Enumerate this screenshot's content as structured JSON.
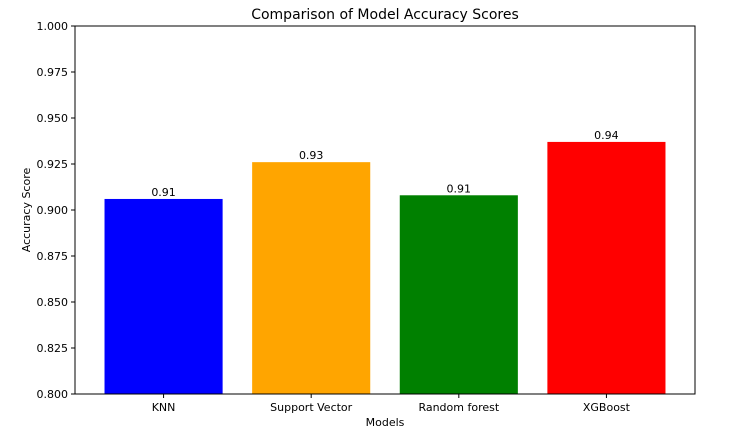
{
  "chart_data": {
    "type": "bar",
    "title": "Comparison of Model Accuracy Scores",
    "xlabel": "Models",
    "ylabel": "Accuracy Score",
    "categories": [
      "KNN",
      "Support Vector",
      "Random forest",
      "XGBoost"
    ],
    "values": [
      0.906,
      0.926,
      0.908,
      0.937
    ],
    "data_labels": [
      "0.91",
      "0.93",
      "0.91",
      "0.94"
    ],
    "colors": [
      "#0000ff",
      "#ffa500",
      "#008000",
      "#ff0000"
    ],
    "ylim": [
      0.8,
      1.0
    ],
    "yticks": [
      0.8,
      0.825,
      0.85,
      0.875,
      0.9,
      0.925,
      0.95,
      0.975,
      1.0
    ],
    "ytick_labels": [
      "0.800",
      "0.825",
      "0.850",
      "0.875",
      "0.900",
      "0.925",
      "0.950",
      "0.975",
      "1.000"
    ],
    "grid": false,
    "legend": "none"
  }
}
